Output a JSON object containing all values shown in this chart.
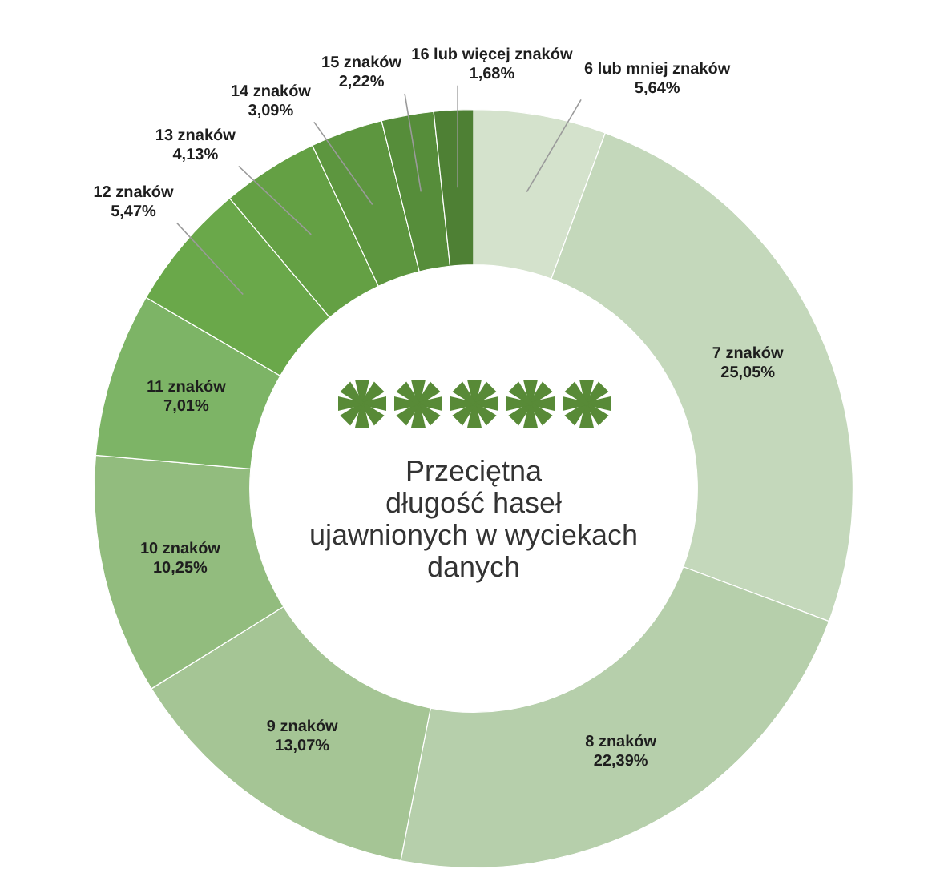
{
  "chart_data": {
    "type": "donut",
    "title": "Przeciętna\ndługość haseł\nujawnionych w wyciekach\ndanych",
    "categories": [
      "6 lub mniej znaków",
      "7 znaków",
      "8 znaków",
      "9 znaków",
      "10 znaków",
      "11 znaków",
      "12 znaków",
      "13 znaków",
      "14 znaków",
      "15 znaków",
      "16 lub więcej znaków"
    ],
    "values": [
      5.64,
      25.05,
      22.39,
      13.07,
      10.25,
      7.01,
      5.47,
      4.13,
      3.09,
      2.22,
      1.68
    ],
    "value_labels": [
      "5,64%",
      "25,05%",
      "22,39%",
      "13,07%",
      "10,25%",
      "7,01%",
      "5,47%",
      "4,13%",
      "3,09%",
      "2,22%",
      "1,68%"
    ],
    "colors": [
      "#d4e2cc",
      "#c4d8bb",
      "#b6cfab",
      "#a5c595",
      "#92bc7e",
      "#7db466",
      "#6aa84a",
      "#64a044",
      "#5d963f",
      "#568d3a",
      "#4e8034"
    ],
    "legend": false
  }
}
